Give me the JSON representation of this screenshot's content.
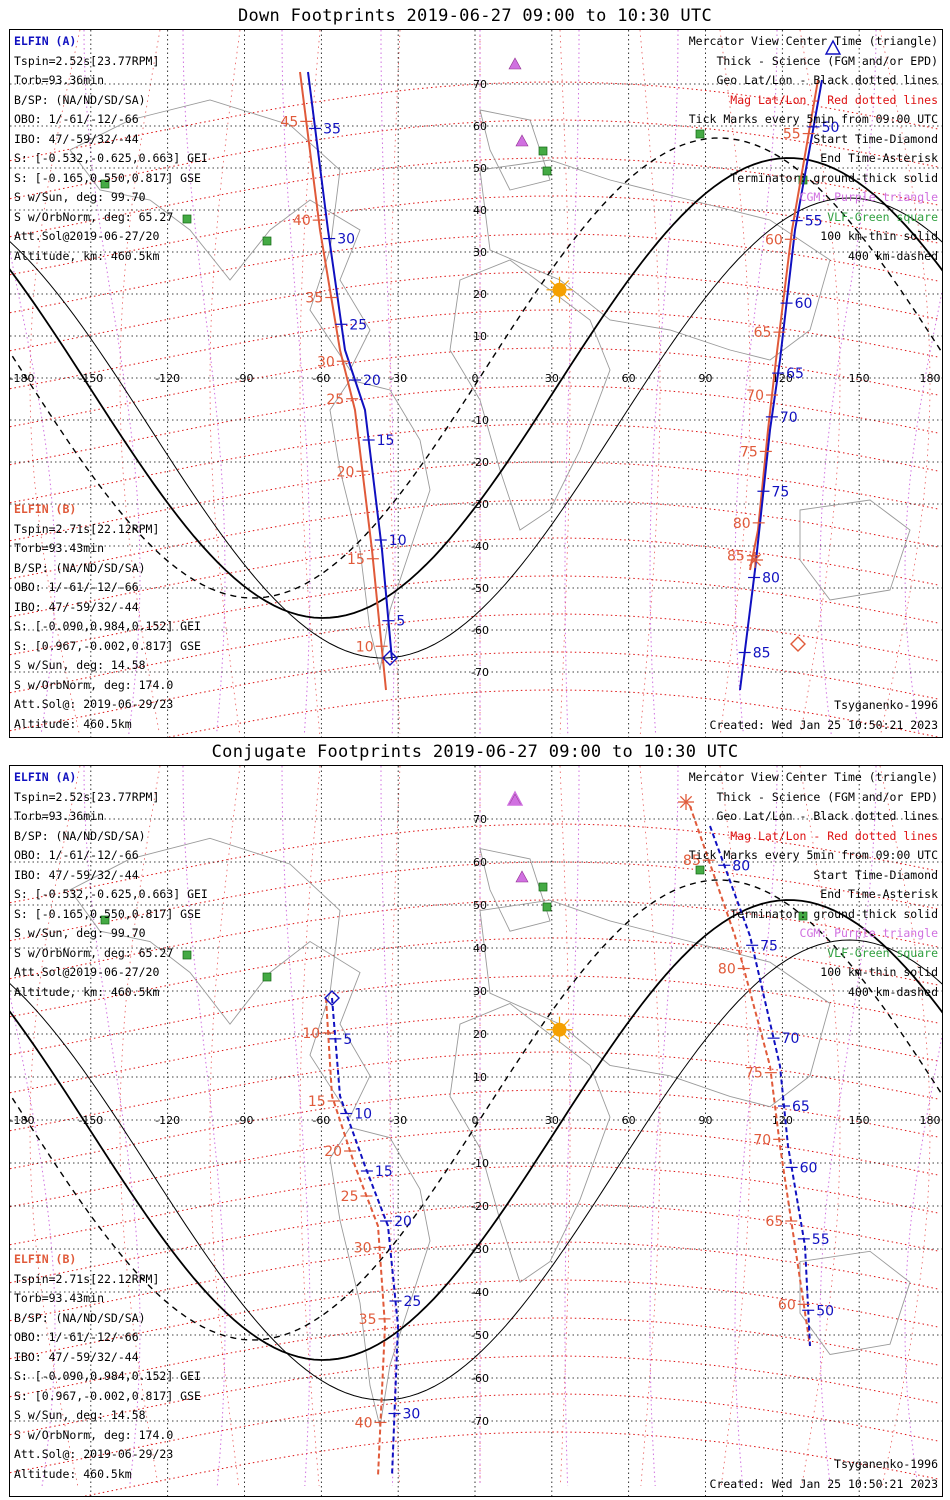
{
  "panels": [
    {
      "id": "top",
      "title": "Down Footprints 2019-06-27 09:00 to 10:30 UTC",
      "elfin_a": {
        "header": "ELFIN (A)",
        "lines": [
          "Tspin=2.52s[23.77RPM]",
          "Torb=93.36min",
          "B/SP: (NA/ND/SD/SA)",
          "OBO: 1/-61/-12/-66",
          "IBO: 47/-59/32/-44",
          "S: [-0.532,-0.625,0.663] GEI",
          "S: [-0.165,0.550,0.817] GSE",
          "S w/Sun, deg: 99.70",
          "S w/OrbNorm, deg: 65.27",
          "Att.Sol@2019-06-27/20",
          "Altitude, km: 460.5km"
        ]
      },
      "elfin_b": {
        "header": "ELFIN (B)",
        "lines": [
          "Tspin=2.71s[22.12RPM]",
          "Torb=93.43min",
          "B/SP: (NA/ND/SD/SA)",
          "OBO: 1/-61/-12/-66",
          "IBO: 47/-59/32/-44",
          "S: [-0.090,0.984,0.152] GEI",
          "S: [0.967,-0.002,0.817] GSE",
          "S w/Sun, deg: 14.58",
          "S w/OrbNorm, deg: 174.0",
          "Att.Sol@: 2019-06-29/23",
          "Altitude: 460.5km"
        ]
      },
      "legend": [
        "Mercator View Center Time (triangle)",
        "Thick - Science (FGM and/or EPD)",
        "Geo Lat/Lon - Black dotted lines",
        "Mag Lat/Lon - Red dotted lines",
        "Tick Marks every 5min from 09:00 UTC",
        "Start Time-Diamond",
        "End Time-Asterisk",
        "Terminator: ground-thick solid",
        "CGM: Purple triangle",
        "VLF-Green square",
        "100 km-thin solid",
        "400 km-dashed"
      ],
      "model": "Tsyganenko-1996",
      "created": "Created: Wed Jan 25 10:50:21 2023",
      "ticks_a_west": [
        "35",
        "30",
        "25",
        "20",
        "15",
        "10",
        "5"
      ],
      "ticks_b_west": [
        "45",
        "40",
        "35",
        "30",
        "25",
        "20",
        "15",
        "10"
      ],
      "ticks_a_east": [
        "50",
        "55",
        "60",
        "65",
        "70",
        "75",
        "80",
        "85"
      ],
      "ticks_b_east": [
        "55",
        "60",
        "65",
        "70",
        "75",
        "80",
        "85"
      ]
    },
    {
      "id": "bottom",
      "title": "Conjugate Footprints 2019-06-27 09:00 to 10:30 UTC",
      "elfin_a": {
        "header": "ELFIN (A)",
        "lines": [
          "Tspin=2.52s[23.77RPM]",
          "Torb=93.36min",
          "B/SP: (NA/ND/SD/SA)",
          "OBO: 1/-61/-12/-66",
          "IBO: 47/-59/32/-44",
          "S: [-0.532,-0.625,0.663] GEI",
          "S: [-0.165,0.550,0.817] GSE",
          "S w/Sun, deg: 99.70",
          "S w/OrbNorm, deg: 65.27",
          "Att.Sol@2019-06-27/20",
          "Altitude, km: 460.5km"
        ]
      },
      "elfin_b": {
        "header": "ELFIN (B)",
        "lines": [
          "Tspin=2.71s[22.12RPM]",
          "Torb=93.43min",
          "B/SP: (NA/ND/SD/SA)",
          "OBO: 1/-61/-12/-66",
          "IBO: 47/-59/32/-44",
          "S: [-0.090,0.984,0.152] GEI",
          "S: [0.967,-0.002,0.817] GSE",
          "S w/Sun, deg: 14.58",
          "S w/OrbNorm, deg: 174.0",
          "Att.Sol@: 2019-06-29/23",
          "Altitude: 460.5km"
        ]
      },
      "legend": [
        "Mercator View Center Time (triangle)",
        "Thick - Science (FGM and/or EPD)",
        "Geo Lat/Lon - Black dotted lines",
        "Mag Lat/Lon - Red dotted lines",
        "Tick Marks every 5min from 09:00 UTC",
        "Start Time-Diamond",
        "End Time-Asterisk",
        "Terminator: ground-thick solid",
        "CGM: Purple triangle",
        "VLF-Green square",
        "100 km-thin solid",
        "400 km-dashed"
      ],
      "model": "Tsyganenko-1996",
      "created": "Created: Wed Jan 25 10:50:21 2023",
      "ticks_a_west": [
        "5",
        "10",
        "15",
        "20",
        "25",
        "30"
      ],
      "ticks_b_west": [
        "10",
        "15",
        "20",
        "25",
        "30",
        "35",
        "40"
      ],
      "ticks_a_east": [
        "80",
        "75",
        "70",
        "65",
        "60",
        "55",
        "50"
      ],
      "ticks_b_east": [
        "85",
        "80",
        "75",
        "70",
        "65",
        "60"
      ]
    }
  ],
  "axes": {
    "lon_labels": [
      "-180",
      "-150",
      "-120",
      "-90",
      "-60",
      "-30",
      "0",
      "30",
      "60",
      "90",
      "120",
      "150",
      "180"
    ],
    "lat_labels": [
      "70",
      "60",
      "50",
      "40",
      "30",
      "20",
      "10",
      "-10",
      "-20",
      "-30",
      "-40",
      "-50",
      "-60",
      "-70"
    ]
  },
  "colors": {
    "elfin_a": "#1010c0",
    "elfin_b": "#e05a3a",
    "mag_grid": "#dd1111",
    "geo_grid": "#000000",
    "cgm": "#d070e0",
    "vlf": "#30a040",
    "sun": "#f5a000"
  }
}
